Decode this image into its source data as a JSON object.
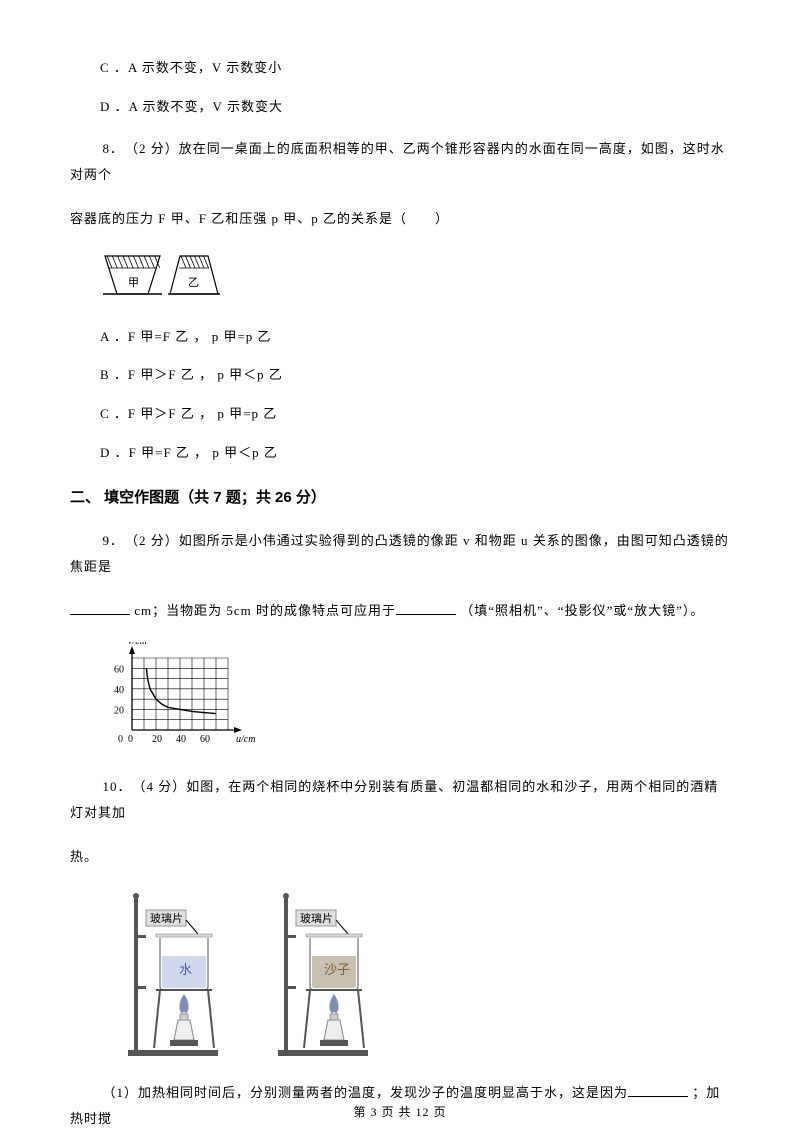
{
  "q7": {
    "option_c": "C ．A 示数不变，V 示数变小",
    "option_d": "D ．A 示数不变，V 示数变大"
  },
  "q8": {
    "stem1": "8．　（2 分）放在同一桌面上的底面积相等的甲、乙两个锥形容器内的水面在同一高度，如图，这时水对两个",
    "stem2": "容器底的压力 F 甲、F 乙和压强 p 甲、p 乙的关系是（　　）",
    "diagram": {
      "colors": {
        "stroke": "#000000",
        "hatch": "#000000",
        "fill": "#ffffff"
      },
      "label_left": "甲",
      "label_right": "乙"
    },
    "option_a": "A ．F 甲=F 乙 ，  p 甲=p 乙",
    "option_b": "B ．F 甲＞F 乙 ，  p 甲＜p 乙",
    "option_c": "C ．F 甲＞F 乙 ，  p 甲=p 乙",
    "option_d": "D ．F 甲=F 乙 ，  p 甲＜p 乙"
  },
  "section2": "二、 填空作图题（共 7 题；共 26 分）",
  "q9": {
    "stem1": "9．　（2 分）如图所示是小伟通过实验得到的凸透镜的像距 v 和物距 u 关系的图像，由图可知凸透镜的焦距是",
    "stem2_a": " cm；当物距为 5cm 时的成像特点可应用于",
    "stem2_b": " （填“照相机”、“投影仪”或“放大镜”）。",
    "blank1_width": 60,
    "blank2_width": 60,
    "chart": {
      "type": "line",
      "xlabel": "u/cm",
      "ylabel": "v/cm",
      "xlim": [
        0,
        80
      ],
      "ylim": [
        0,
        70
      ],
      "xticks": [
        0,
        20,
        40,
        60
      ],
      "yticks": [
        20,
        40,
        60
      ],
      "grid_color": "#000000",
      "curve_points": [
        [
          12,
          60
        ],
        [
          13,
          50
        ],
        [
          15,
          40
        ],
        [
          20,
          30
        ],
        [
          25,
          25
        ],
        [
          30,
          22
        ],
        [
          40,
          20
        ],
        [
          50,
          18
        ],
        [
          60,
          17
        ],
        [
          70,
          16
        ]
      ],
      "curve_color": "#000000",
      "bg": "#ffffff",
      "fontsize": 10
    }
  },
  "q10": {
    "stem1": "10．　（4 分）如图，在两个相同的烧杯中分别装有质量、初温都相同的水和沙子，用两个相同的酒精灯对其加",
    "stem2": "热。",
    "diagram": {
      "label_glass": "玻璃片",
      "label_water": "水",
      "label_sand": "沙子",
      "colors": {
        "stand": "#555555",
        "beaker_outline": "#888888",
        "beaker_fill_water": "#d0d8f0",
        "beaker_fill_sand": "#c8c0b0",
        "burner": "#888888",
        "text_water": "#5050c0",
        "text_sand": "#806030",
        "glass_box_fill": "#e0e0e0",
        "glass_box_stroke": "#808080",
        "flame": "#6070a0"
      }
    },
    "sub1_a": "（1）加热相同时间后，分别测量两者的温度，发现沙子的温度明显高于水，这是因为",
    "sub1_b": " ；加热时搅",
    "sub1_blank_width": 60
  },
  "footer": "第 3 页 共 12 页"
}
